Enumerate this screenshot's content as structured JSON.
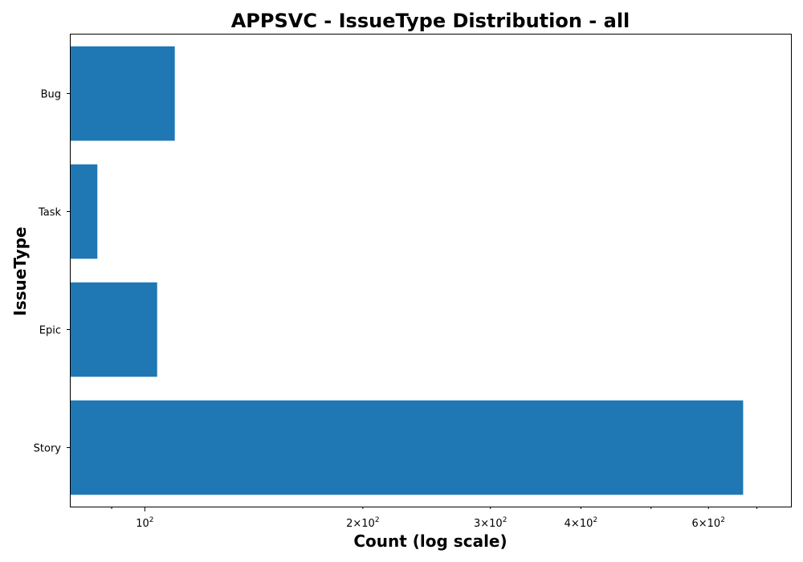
{
  "chart_data": {
    "type": "bar",
    "orientation": "horizontal",
    "title": "APPSVC - IssueType Distribution - all",
    "xlabel": "Count (log scale)",
    "ylabel": "IssueType",
    "x_scale": "log",
    "xlim": [
      79,
      780
    ],
    "categories": [
      "Bug",
      "Task",
      "Epic",
      "Story"
    ],
    "values": [
      110,
      86,
      104,
      670
    ],
    "bar_color": "#1f77b4",
    "grid": false,
    "legend": "none",
    "x_major_ticks": [
      {
        "value": 100,
        "base": "10",
        "exponent": "2"
      }
    ],
    "x_minor_ticks": [
      {
        "value": 200,
        "coef": "2",
        "base": "10",
        "exponent": "2"
      },
      {
        "value": 300,
        "coef": "3",
        "base": "10",
        "exponent": "2"
      },
      {
        "value": 400,
        "coef": "4",
        "base": "10",
        "exponent": "2"
      },
      {
        "value": 600,
        "coef": "6",
        "base": "10",
        "exponent": "2"
      }
    ],
    "x_unlabeled_minor_ticks": [
      90,
      500,
      700
    ]
  }
}
